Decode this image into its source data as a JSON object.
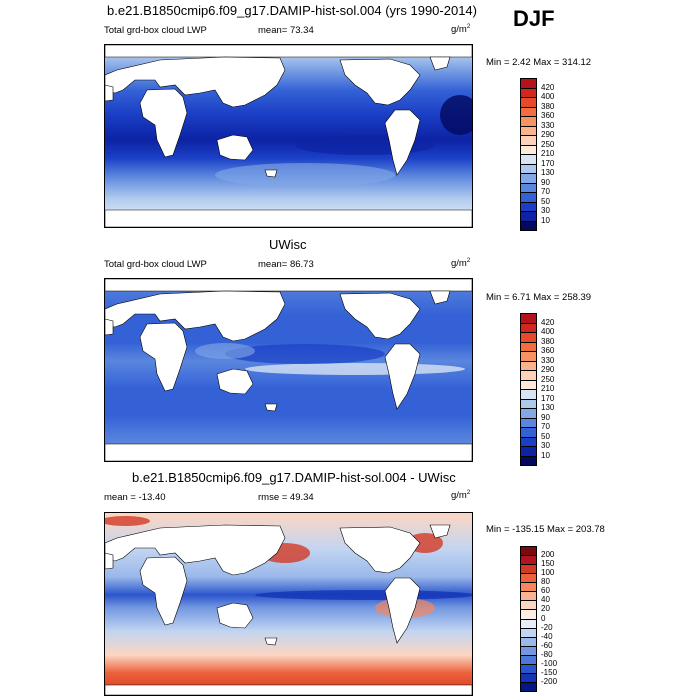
{
  "season": "DJF",
  "panels": [
    {
      "id": "model",
      "title": "b.e21.B1850cmip6.f09_g17.DAMIP-hist-sol.004 (yrs 1990-2014)",
      "field_label": "Total grd-box cloud LWP",
      "stat1": "mean=  73.34",
      "stat2": "",
      "unit_base": "g/m",
      "unit_exp": "2",
      "minmax": "Min =   2.42 Max = 314.12",
      "palette": "abs"
    },
    {
      "id": "obs",
      "title": "UWisc",
      "field_label": "Total grd-box cloud LWP",
      "stat1": "mean=  86.73",
      "stat2": "",
      "unit_base": "g/m",
      "unit_exp": "2",
      "minmax": "Min =   6.71 Max = 258.39",
      "palette": "abs"
    },
    {
      "id": "diff",
      "title": "b.e21.B1850cmip6.f09_g17.DAMIP-hist-sol.004 - UWisc",
      "field_label": "mean = -13.40",
      "stat1": "rmse =  49.34",
      "stat2": "",
      "unit_base": "g/m",
      "unit_exp": "2",
      "minmax": "Min = -135.15 Max = 203.78",
      "palette": "diff"
    }
  ],
  "colorbars": {
    "abs": {
      "labels": [
        "420",
        "400",
        "380",
        "360",
        "330",
        "290",
        "250",
        "210",
        "170",
        "130",
        "90",
        "70",
        "50",
        "30",
        "10"
      ],
      "colors": [
        "#b2131d",
        "#d0281c",
        "#e74a26",
        "#f26d3f",
        "#f79263",
        "#fab38c",
        "#fcd2b8",
        "#fdeadc",
        "#d7e4f5",
        "#afc9ee",
        "#83a8e6",
        "#5a86de",
        "#3462d6",
        "#1a3fc6",
        "#0d23a4",
        "#02095f"
      ]
    },
    "diff": {
      "labels": [
        "200",
        "150",
        "100",
        "80",
        "60",
        "40",
        "20",
        "0",
        "-20",
        "-40",
        "-60",
        "-80",
        "-100",
        "-150",
        "-200"
      ],
      "colors": [
        "#7a0a10",
        "#b2131d",
        "#d33a25",
        "#ec603a",
        "#f5875e",
        "#fab38f",
        "#fcd6c2",
        "#fdefe6",
        "#e6eef9",
        "#c2d5f1",
        "#9ab8ea",
        "#7398e1",
        "#4e78d8",
        "#2b55cc",
        "#1435b6",
        "#041785"
      ]
    }
  }
}
